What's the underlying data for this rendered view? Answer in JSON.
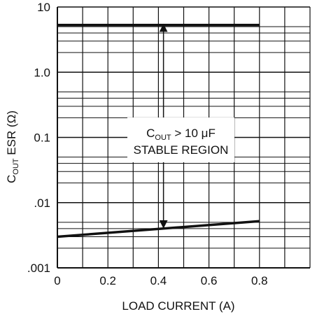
{
  "chart_data": {
    "type": "line",
    "xlabel": "LOAD CURRENT (A)",
    "ylabel": {
      "main": "C",
      "sub": "OUT",
      "rest": " ESR (Ω)"
    },
    "xlim": [
      0,
      1.0
    ],
    "ylim": [
      0.001,
      10
    ],
    "yscale": "log",
    "grid": true,
    "x_ticks": [
      0,
      0.2,
      0.4,
      0.6,
      0.8
    ],
    "x_tick_labels": [
      "0",
      "0.2",
      "0.4",
      "0.6",
      "0.8"
    ],
    "y_ticks": [
      0.001,
      0.01,
      0.1,
      1,
      10
    ],
    "y_tick_labels": [
      ".001",
      ".01",
      "0.1",
      "1.0",
      "10"
    ],
    "series": [
      {
        "x": [
          0,
          0.8
        ],
        "y": [
          5.3,
          5.3
        ]
      },
      {
        "x": [
          0,
          0.8
        ],
        "y": [
          0.003,
          0.0052
        ]
      }
    ],
    "annotation": {
      "line1_main": "C",
      "line1_sub": "OUT",
      "line1_rest": " > 10 μF",
      "line2": "STABLE REGION",
      "x": 0.42,
      "y_top": 5.3,
      "y_bottom": 0.0042
    },
    "colors": {
      "line": "#111111",
      "grid": "#111111",
      "background": "#ffffff"
    }
  }
}
